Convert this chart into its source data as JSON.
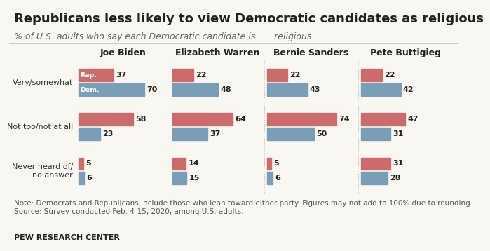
{
  "title": "Republicans less likely to view Democratic candidates as religious",
  "subtitle": "% of U.S. adults who say each Democratic candidate is ___ religious",
  "note": "Note: Democrats and Republicans include those who lean toward either party. Figures may not add to 100% due to rounding.\nSource: Survey conducted Feb. 4-15, 2020, among U.S. adults.",
  "source_label": "PEW RESEARCH CENTER",
  "candidates": [
    "Joe Biden",
    "Elizabeth Warren",
    "Bernie Sanders",
    "Pete Buttigieg"
  ],
  "cat_labels": [
    "Very/somewhat",
    "Not too/not at all",
    "Never heard of/\nno answer"
  ],
  "rep_color": "#cc6b6b",
  "dem_color": "#7b9eb8",
  "data": {
    "Joe Biden": {
      "rep": [
        37,
        58,
        5
      ],
      "dem": [
        70,
        23,
        6
      ]
    },
    "Elizabeth Warren": {
      "rep": [
        22,
        64,
        14
      ],
      "dem": [
        48,
        37,
        15
      ]
    },
    "Bernie Sanders": {
      "rep": [
        22,
        74,
        5
      ],
      "dem": [
        43,
        50,
        6
      ]
    },
    "Pete Buttigieg": {
      "rep": [
        22,
        47,
        31
      ],
      "dem": [
        42,
        31,
        28
      ]
    }
  },
  "background_color": "#f9f7f2",
  "max_val": 80,
  "title_fontsize": 13,
  "subtitle_fontsize": 9,
  "note_fontsize": 7.5,
  "value_fontsize": 8,
  "category_fontsize": 8,
  "candidate_fontsize": 9
}
